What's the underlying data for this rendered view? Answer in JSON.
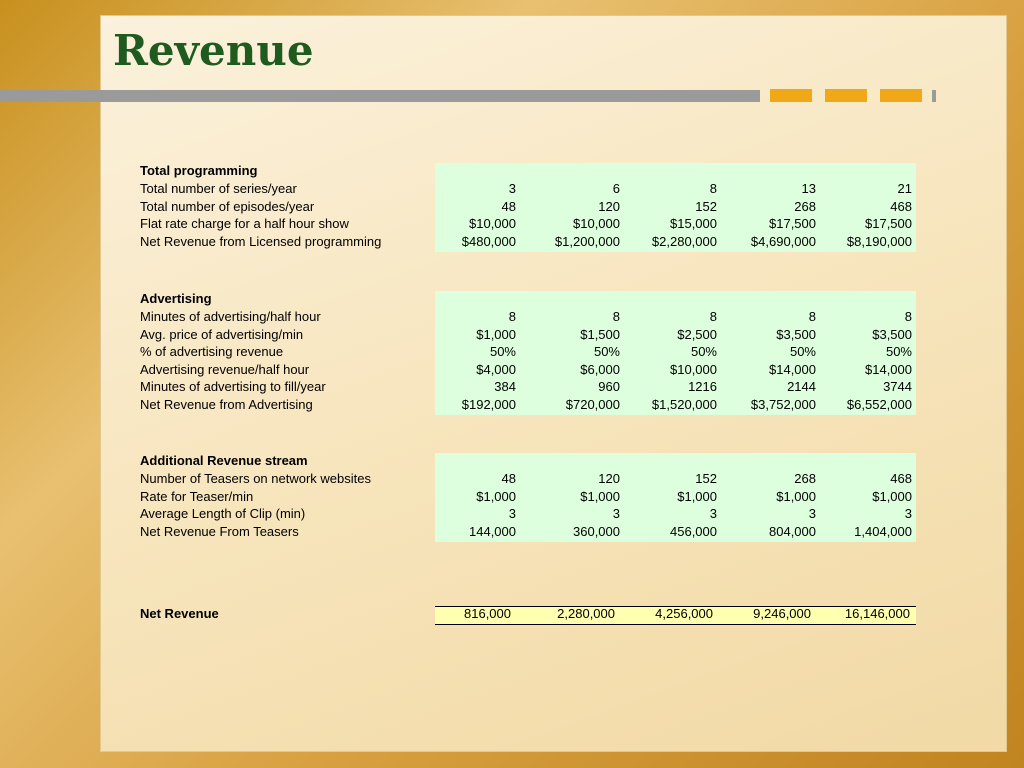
{
  "title": "Revenue",
  "sections": [
    {
      "heading": "Total programming",
      "rows": [
        {
          "label": "Total number of series/year",
          "values": [
            "3",
            "6",
            "8",
            "13",
            "21"
          ]
        },
        {
          "label": "Total number of episodes/year",
          "values": [
            "48",
            "120",
            "152",
            "268",
            "468"
          ]
        },
        {
          "label": "Flat rate charge for a half hour show",
          "values": [
            "$10,000",
            "$10,000",
            "$15,000",
            "$17,500",
            "$17,500"
          ]
        },
        {
          "label": "Net Revenue from Licensed programming",
          "values": [
            "$480,000",
            "$1,200,000",
            "$2,280,000",
            "$4,690,000",
            "$8,190,000"
          ]
        }
      ]
    },
    {
      "heading": "Advertising",
      "rows": [
        {
          "label": "Minutes of advertising/half hour",
          "values": [
            "8",
            "8",
            "8",
            "8",
            "8"
          ]
        },
        {
          "label": "Avg. price of advertising/min",
          "values": [
            "$1,000",
            "$1,500",
            "$2,500",
            "$3,500",
            "$3,500"
          ]
        },
        {
          "label": "% of advertising revenue",
          "values": [
            "50%",
            "50%",
            "50%",
            "50%",
            "50%"
          ]
        },
        {
          "label": "Advertising revenue/half hour",
          "values": [
            "$4,000",
            "$6,000",
            "$10,000",
            "$14,000",
            "$14,000"
          ]
        },
        {
          "label": "Minutes of advertising to fill/year",
          "values": [
            "384",
            "960",
            "1216",
            "2144",
            "3744"
          ]
        },
        {
          "label": "Net Revenue from Advertising",
          "values": [
            "$192,000",
            "$720,000",
            "$1,520,000",
            "$3,752,000",
            "$6,552,000"
          ]
        }
      ]
    },
    {
      "heading": "Additional Revenue stream",
      "rows": [
        {
          "label": "Number of Teasers on network websites",
          "values": [
            "48",
            "120",
            "152",
            "268",
            "468"
          ]
        },
        {
          "label": "Rate for Teaser/min",
          "values": [
            "$1,000",
            "$1,000",
            "$1,000",
            "$1,000",
            "$1,000"
          ]
        },
        {
          "label": "Average Length of Clip (min)",
          "values": [
            "3",
            "3",
            "3",
            "3",
            "3"
          ]
        },
        {
          "label": "Net Revenue From Teasers",
          "values": [
            "144,000",
            "360,000",
            "456,000",
            "804,000",
            "1,404,000"
          ]
        }
      ]
    }
  ],
  "net_revenue": {
    "label": "Net Revenue",
    "values": [
      "816,000",
      "2,280,000",
      "4,256,000",
      "9,246,000",
      "16,146,000"
    ]
  }
}
